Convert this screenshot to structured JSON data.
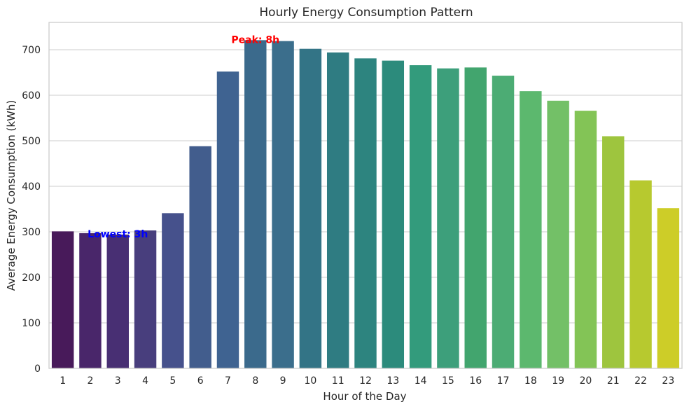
{
  "chart_data": {
    "type": "bar",
    "title": "Hourly Energy Consumption Pattern",
    "xlabel": "Hour of the Day",
    "ylabel": "Average Energy Consumption (kWh)",
    "categories": [
      "1",
      "2",
      "3",
      "4",
      "5",
      "6",
      "7",
      "8",
      "9",
      "10",
      "11",
      "12",
      "13",
      "14",
      "15",
      "16",
      "17",
      "18",
      "19",
      "20",
      "21",
      "22",
      "23"
    ],
    "values": [
      301,
      297,
      294,
      303,
      341,
      488,
      652,
      721,
      719,
      702,
      694,
      681,
      676,
      666,
      659,
      661,
      643,
      609,
      588,
      566,
      510,
      413,
      352
    ],
    "ylim": [
      0,
      760
    ],
    "yticks": [
      0,
      100,
      200,
      300,
      400,
      500,
      600,
      700
    ],
    "grid": true,
    "colormap": "viridis",
    "colors": [
      "#481a5a",
      "#49266a",
      "#482f73",
      "#483e7d",
      "#46518c",
      "#425d8d",
      "#3f6391",
      "#3b6a8c",
      "#3b6e8c",
      "#337486",
      "#2f7c82",
      "#2d847f",
      "#2c8b7c",
      "#339b7c",
      "#3d9f7b",
      "#42a56e",
      "#4cac74",
      "#5cb86e",
      "#73c067",
      "#83c456",
      "#9ec53e",
      "#b7c92f",
      "#cdcd28"
    ],
    "annotations": [
      {
        "text": "Peak: 8h",
        "category": "8",
        "value": 721,
        "color": "#ff0000"
      },
      {
        "text": "Lowest: 3h",
        "category": "3",
        "value": 294,
        "color": "#0000ff"
      }
    ]
  }
}
